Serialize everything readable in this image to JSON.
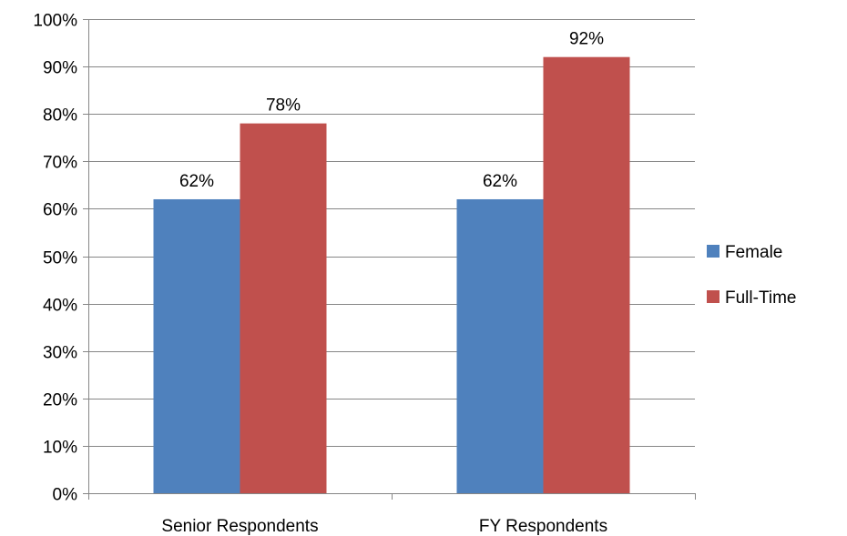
{
  "chart_data": {
    "type": "bar",
    "categories": [
      "Senior Respondents",
      "FY Respondents"
    ],
    "series": [
      {
        "name": "Female",
        "values": [
          62,
          62
        ],
        "color": "#4f81bd",
        "labels": [
          "62%",
          "62%"
        ]
      },
      {
        "name": "Full-Time",
        "values": [
          78,
          92
        ],
        "color": "#c0504d",
        "labels": [
          "78%",
          "92%"
        ]
      }
    ],
    "ylim": [
      0,
      100
    ],
    "ytick_labels": [
      "0%",
      "10%",
      "20%",
      "30%",
      "40%",
      "50%",
      "60%",
      "70%",
      "80%",
      "90%",
      "100%"
    ],
    "grid": true,
    "legend": "right",
    "gridline_color": "#868686",
    "axis_color": "#868686"
  }
}
